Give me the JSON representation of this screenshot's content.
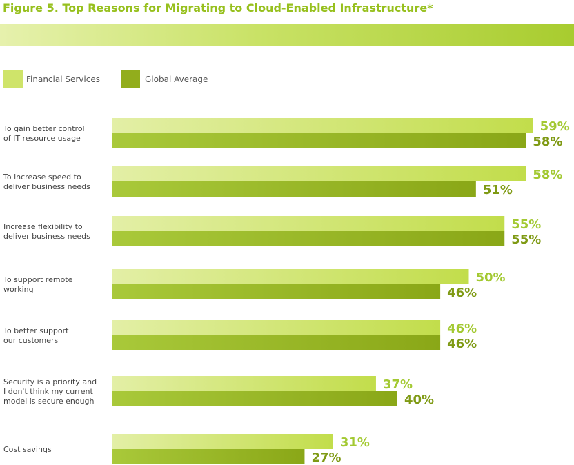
{
  "chart_data": {
    "type": "bar",
    "orientation": "horizontal",
    "title": "Figure 5. Top Reasons for Migrating to Cloud-Enabled Infrastructure*",
    "categories": [
      [
        "To gain better control",
        "of IT resource usage"
      ],
      [
        "To increase speed to",
        "deliver business needs"
      ],
      [
        "Increase flexibility to",
        "deliver business needs"
      ],
      [
        "To support remote",
        "working"
      ],
      [
        "To better support",
        "our customers"
      ],
      [
        "Security is a priority and",
        "I don't think my current",
        "model is secure enough"
      ],
      [
        "Cost savings"
      ]
    ],
    "series": [
      {
        "name": "Financial Services",
        "values": [
          59,
          58,
          55,
          50,
          46,
          37,
          31
        ],
        "value_labels": [
          "59%",
          "58%",
          "55%",
          "50%",
          "46%",
          "37%",
          "31%"
        ],
        "color": "#cfe46a",
        "label_color": "#a3c932"
      },
      {
        "name": "Global Average",
        "values": [
          58,
          51,
          55,
          46,
          46,
          40,
          27
        ],
        "value_labels": [
          "58%",
          "51%",
          "55%",
          "46%",
          "46%",
          "40%",
          "27%"
        ],
        "color": "#92ad1c",
        "label_color": "#7f9a14"
      }
    ],
    "unit": "%",
    "legend_position": "top-left",
    "grid": false
  }
}
